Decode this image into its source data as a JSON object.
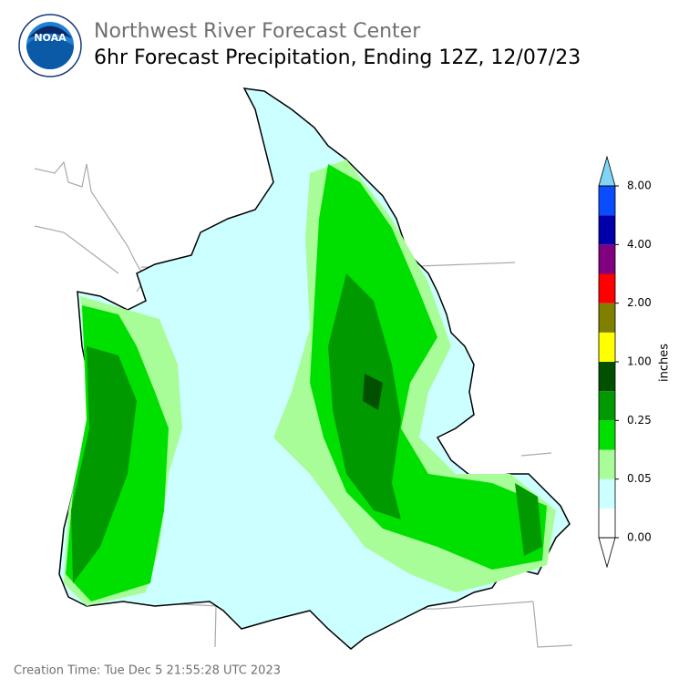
{
  "header": {
    "title": "Northwest River Forecast Center",
    "subtitle": "6hr Forecast Precipitation, Ending 12Z, 12/07/23"
  },
  "logo": {
    "text": "NOAA"
  },
  "colorbar": {
    "unit": "inches",
    "ticks": [
      {
        "value": 0,
        "label": "0.00"
      },
      {
        "value": 0.05,
        "label": "0.05"
      },
      {
        "value": 0.25,
        "label": "0.25"
      },
      {
        "value": 1,
        "label": "1.00"
      },
      {
        "value": 2,
        "label": "2.00"
      },
      {
        "value": 4,
        "label": "4.00"
      },
      {
        "value": 8,
        "label": "8.00"
      }
    ],
    "colors": [
      "#ffffff",
      "#ccffff",
      "#a9fd99",
      "#00e000",
      "#009a00",
      "#005000",
      "#ffff00",
      "#7f7f00",
      "#ff0000",
      "#800080",
      "#0000aa",
      "#0a4cff"
    ],
    "under_color": "#ffffff",
    "over_color": "#80d4f8"
  },
  "footer": {
    "creation_time": "Creation Time: Tue Dec 5 21:55:28 UTC 2023"
  }
}
